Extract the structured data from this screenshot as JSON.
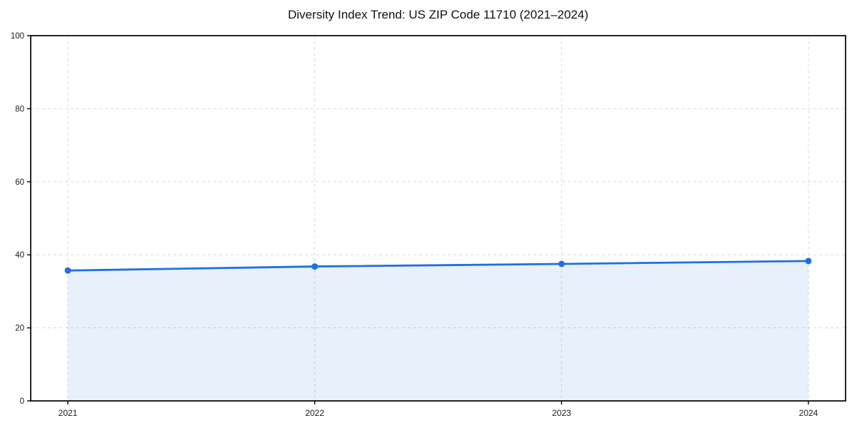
{
  "header": {
    "title": "Diversity Index Trend: US ZIP Code 11710 (2021–2024)"
  },
  "chart_data": {
    "type": "line",
    "title": "Diversity Index Trend: US ZIP Code 11710 (2021–2024)",
    "x": [
      "2021",
      "2022",
      "2023",
      "2024"
    ],
    "series": [
      {
        "name": "Diversity Index",
        "values": [
          35.7,
          36.8,
          37.5,
          38.3
        ]
      }
    ],
    "xlabel": "",
    "ylabel": "",
    "ylim": [
      0,
      100
    ],
    "yticks": [
      0,
      20,
      40,
      60,
      80,
      100
    ],
    "grid": "dashed-both-axes",
    "legend": "none",
    "area_fill_under_line": true,
    "markers": "circle",
    "colors": {
      "line": "#1f6fe2",
      "marker": "#1f6fe2",
      "fill": "#1f6fe2",
      "fill_opacity": 0.1,
      "grid": "#dcdcdc",
      "spine": "#000000",
      "tick_text": "#1a1a1a",
      "background": "#ffffff"
    }
  }
}
